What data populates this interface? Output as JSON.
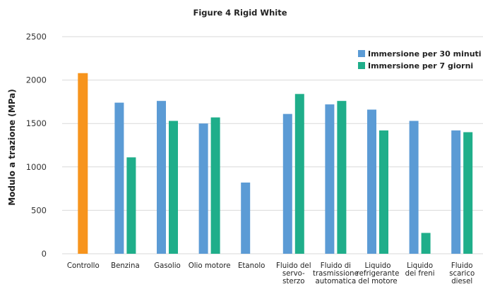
{
  "chart_data": {
    "type": "bar",
    "title": "Figure 4 Rigid White",
    "ylabel": "Modulo a trazione (MPa)",
    "xlabel": "",
    "ylim": [
      0,
      2500
    ],
    "yticks": [
      0,
      500,
      1000,
      1500,
      2000,
      2500
    ],
    "grid": true,
    "legend_position": "top-right",
    "categories": [
      [
        "Controllo"
      ],
      [
        "Benzina"
      ],
      [
        "Gasolio"
      ],
      [
        "Olio motore"
      ],
      [
        "Etanolo"
      ],
      [
        "Fluido del",
        "servo-",
        "sterzo"
      ],
      [
        "Fluido di",
        "trasmissione",
        "automatica"
      ],
      [
        "Liquido",
        "refrigerante",
        "del motore"
      ],
      [
        "Liquido",
        "dei freni"
      ],
      [
        "Fluido",
        "scarico",
        "diesel"
      ]
    ],
    "control": {
      "category_index": 0,
      "value": 2080,
      "color": "#F7941D"
    },
    "series": [
      {
        "name": "Immersione per 30 minuti",
        "color": "#5B9BD5",
        "values": [
          null,
          1740,
          1760,
          1500,
          820,
          1610,
          1720,
          1660,
          1530,
          1420
        ]
      },
      {
        "name": "Immersione per 7 giorni",
        "color": "#1FAE8A",
        "values": [
          null,
          1110,
          1530,
          1570,
          null,
          1840,
          1760,
          1420,
          240,
          1400
        ]
      }
    ]
  }
}
